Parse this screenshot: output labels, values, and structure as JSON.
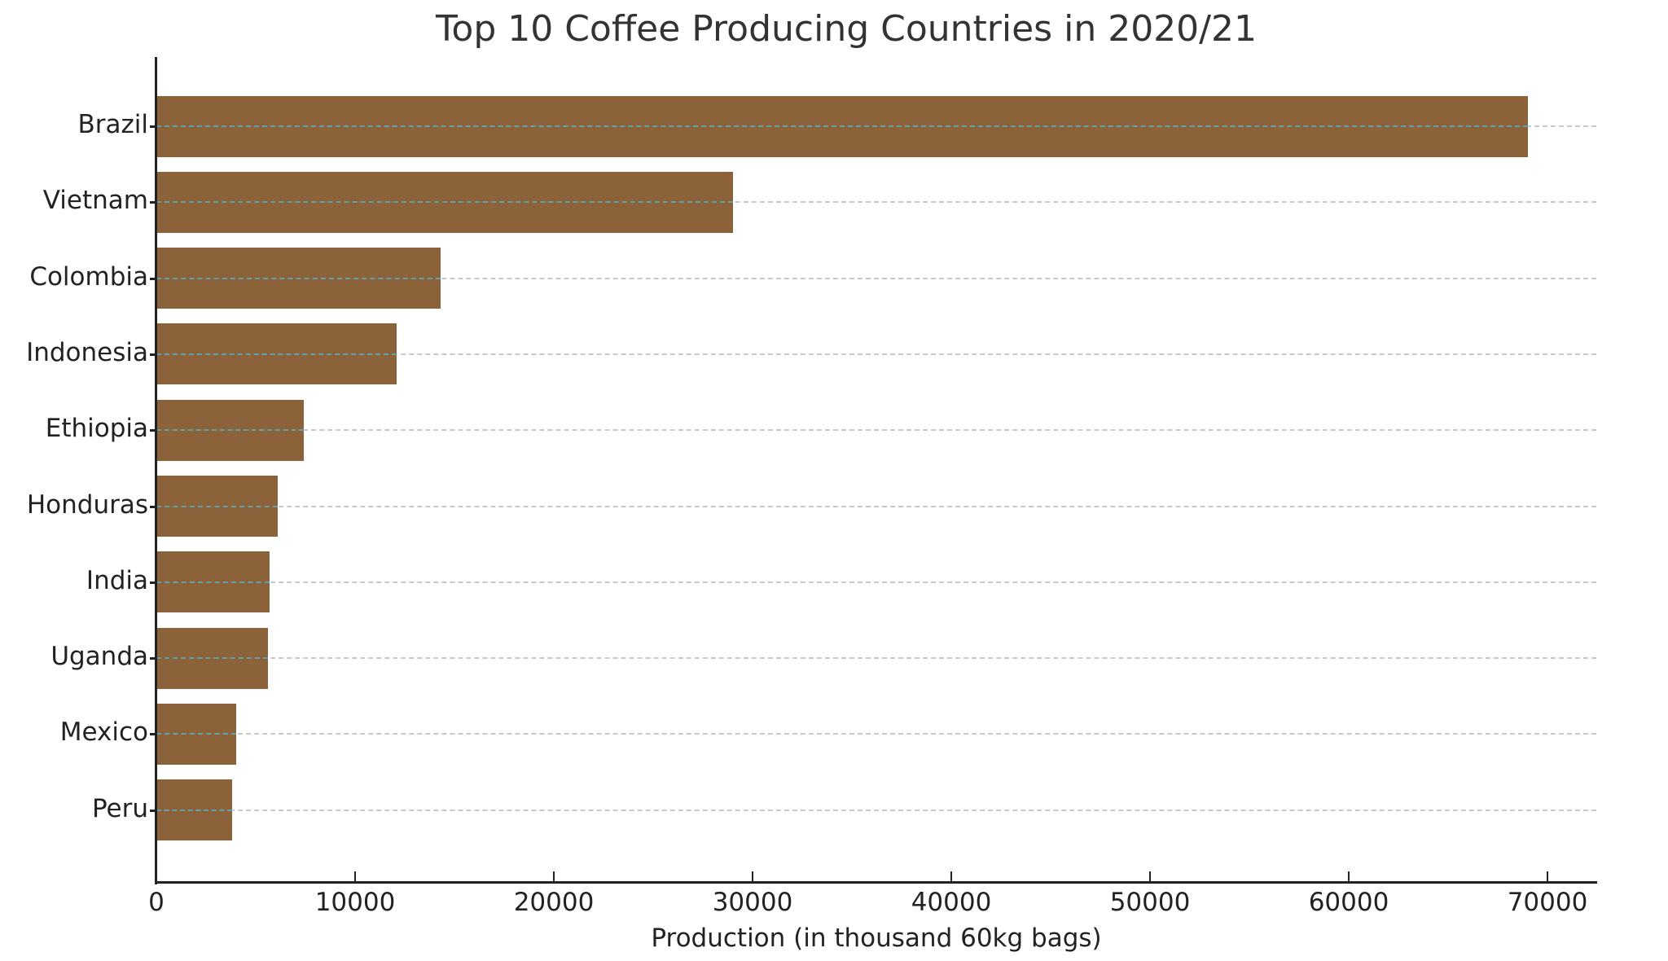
{
  "chart_data": {
    "type": "bar",
    "orientation": "horizontal",
    "title": "Top 10 Coffee Producing Countries in 2020/21",
    "xlabel": "Production (in thousand 60kg bags)",
    "ylabel": "",
    "categories": [
      "Brazil",
      "Vietnam",
      "Colombia",
      "Indonesia",
      "Ethiopia",
      "Honduras",
      "India",
      "Uganda",
      "Mexico",
      "Peru"
    ],
    "values": [
      69000,
      29000,
      14300,
      12100,
      7400,
      6100,
      5700,
      5600,
      4000,
      3800
    ],
    "xlim": [
      0,
      72450
    ],
    "xticks": [
      "0",
      "10000",
      "20000",
      "30000",
      "40000",
      "50000",
      "60000",
      "70000"
    ],
    "grid": "horizontal dashed at y-ticks",
    "legend": null,
    "bar_color": "#8b6239"
  }
}
